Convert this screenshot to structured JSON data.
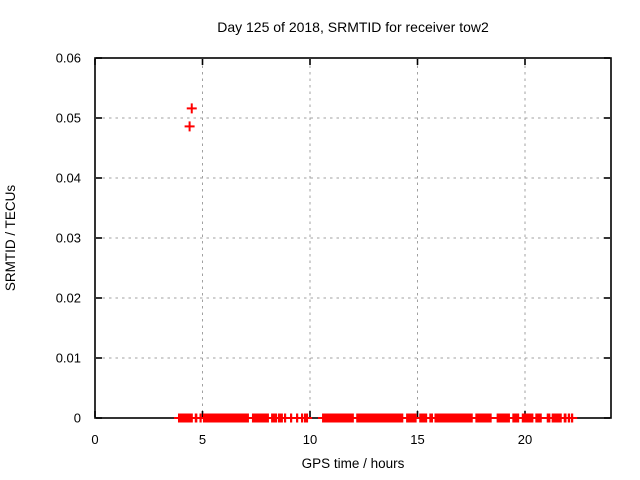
{
  "figure": {
    "background": "#ffffff"
  },
  "chart_data": {
    "type": "scatter",
    "title": "Day 125 of 2018, SRMTID for receiver tow2",
    "xlabel": "GPS time / hours",
    "ylabel": "SRMTID / TECUs",
    "xlim": [
      0,
      24
    ],
    "ylim": [
      0,
      0.06
    ],
    "xticks": {
      "values": [
        0,
        5,
        10,
        15,
        20
      ],
      "labels": [
        "0",
        "5",
        "10",
        "15",
        "20"
      ]
    },
    "yticks": {
      "values": [
        0,
        0.01,
        0.02,
        0.03,
        0.04,
        0.05,
        0.06
      ],
      "labels": [
        "0",
        "0.01",
        "0.02",
        "0.03",
        "0.04",
        "0.05",
        "0.06"
      ]
    },
    "grid": true,
    "legend": "none",
    "marker": {
      "shape": "plus",
      "size": 10,
      "stroke": 2
    },
    "colors": {
      "marker": "#ff0000",
      "grid": "#a0a0a0",
      "border": "#000000",
      "text": "#000000"
    },
    "series": [
      {
        "name": "SRMTID",
        "outlier_points": [
          [
            4.4,
            0.0486
          ],
          [
            4.5,
            0.0516
          ]
        ],
        "baseline_value": 0,
        "baseline_segments_hours": [
          [
            3.86,
            4.55
          ],
          [
            4.64,
            4.76
          ],
          [
            4.86,
            4.93
          ],
          [
            5.02,
            7.16
          ],
          [
            7.3,
            8.09
          ],
          [
            8.19,
            8.47
          ],
          [
            8.51,
            8.74
          ],
          [
            8.79,
            8.88
          ],
          [
            9.07,
            9.16
          ],
          [
            9.35,
            9.44
          ],
          [
            9.58,
            9.67
          ],
          [
            9.72,
            9.91
          ],
          [
            10.56,
            12.04
          ],
          [
            12.15,
            14.34
          ],
          [
            14.47,
            14.96
          ],
          [
            15.08,
            15.45
          ],
          [
            15.55,
            15.72
          ],
          [
            15.79,
            17.57
          ],
          [
            17.69,
            18.45
          ],
          [
            18.68,
            19.3
          ],
          [
            19.41,
            19.73
          ],
          [
            19.85,
            20.39
          ],
          [
            20.48,
            20.78
          ],
          [
            21.01,
            21.18
          ],
          [
            21.24,
            21.71
          ],
          [
            21.8,
            21.93
          ],
          [
            21.99,
            22.1
          ],
          [
            22.14,
            22.21
          ]
        ]
      }
    ]
  }
}
